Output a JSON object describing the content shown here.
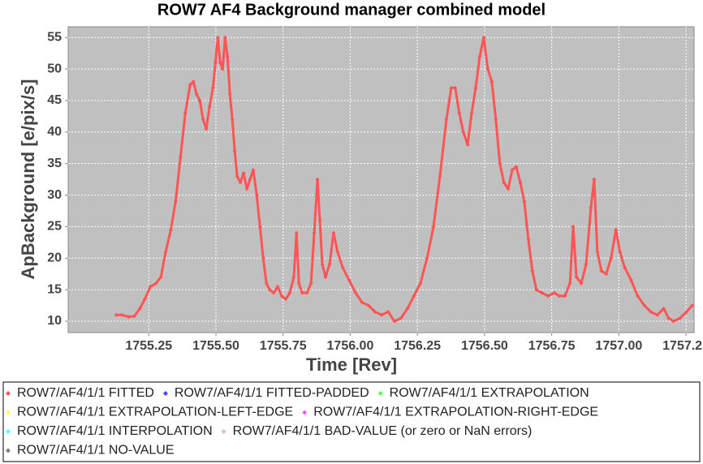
{
  "chart_data": {
    "type": "scatter",
    "title": "ROW7 AF4 Background manager combined model",
    "x_label": "Time [Rev]",
    "y_label": "ApBackground [e/pix/s]",
    "xlim": [
      1754.95,
      1757.28
    ],
    "ylim": [
      8.2,
      56.7
    ],
    "xticks": [
      1755.25,
      {
        "value": 1755.5,
        "label": "1755.50"
      },
      1755.75,
      {
        "value": 1756,
        "label": "1756.00"
      },
      1756.25,
      {
        "value": 1756.5,
        "label": "1756.50"
      },
      1756.75,
      {
        "value": 1757,
        "label": "1757.00"
      },
      1757.25
    ],
    "yticks": [
      10,
      15,
      20,
      25,
      30,
      35,
      40,
      45,
      50,
      55
    ],
    "grid": true,
    "background": "#c0c0c0",
    "series": [
      {
        "name": "ROW7/AF4/1/1 FITTED",
        "color": "#ff5555",
        "x": [
          1755.129,
          1755.15,
          1755.175,
          1755.196,
          1755.217,
          1755.235,
          1755.256,
          1755.277,
          1755.295,
          1755.313,
          1755.332,
          1755.35,
          1755.368,
          1755.386,
          1755.404,
          1755.416,
          1755.428,
          1755.44,
          1755.452,
          1755.464,
          1755.476,
          1755.489,
          1755.498,
          1755.507,
          1755.516,
          1755.525,
          1755.534,
          1755.543,
          1755.552,
          1755.561,
          1755.57,
          1755.579,
          1755.591,
          1755.603,
          1755.615,
          1755.627,
          1755.639,
          1755.652,
          1755.664,
          1755.676,
          1755.688,
          1755.7,
          1755.715,
          1755.73,
          1755.745,
          1755.76,
          1755.775,
          1755.79,
          1755.8,
          1755.809,
          1755.821,
          1755.839,
          1755.854,
          1755.866,
          1755.878,
          1755.887,
          1755.896,
          1755.908,
          1755.923,
          1755.938,
          1755.953,
          1755.972,
          1755.996,
          1756.02,
          1756.044,
          1756.068,
          1756.092,
          1756.117,
          1756.141,
          1756.165,
          1756.189,
          1756.213,
          1756.237,
          1756.261,
          1756.286,
          1756.31,
          1756.334,
          1756.358,
          1756.376,
          1756.391,
          1756.406,
          1756.421,
          1756.437,
          1756.452,
          1756.467,
          1756.482,
          1756.497,
          1756.512,
          1756.527,
          1756.542,
          1756.557,
          1756.572,
          1756.588,
          1756.603,
          1756.618,
          1756.633,
          1756.648,
          1756.663,
          1756.678,
          1756.693,
          1756.714,
          1756.736,
          1756.76,
          1756.778,
          1756.799,
          1756.818,
          1756.83,
          1756.842,
          1756.86,
          1756.878,
          1756.896,
          1756.908,
          1756.92,
          1756.935,
          1756.953,
          1756.971,
          1756.989,
          1757.004,
          1757.022,
          1757.046,
          1757.07,
          1757.095,
          1757.119,
          1757.143,
          1757.167,
          1757.185,
          1757.203,
          1757.228,
          1757.252,
          1757.273
        ],
        "values": [
          11,
          11,
          10.7,
          10.8,
          12,
          13.5,
          15.5,
          16,
          17,
          21,
          24.5,
          29,
          36,
          43,
          47.5,
          48,
          46,
          45,
          42,
          40.5,
          44,
          47,
          51,
          55,
          51,
          50,
          55,
          52,
          46,
          42,
          37,
          33,
          32,
          33.5,
          31,
          32.5,
          34,
          30,
          25,
          20,
          16,
          15,
          14.5,
          15.5,
          14,
          13.5,
          14.5,
          17,
          24,
          16,
          14.5,
          14.5,
          16,
          24,
          32.5,
          26,
          19,
          17,
          19,
          24,
          21,
          18.5,
          16.5,
          14.5,
          13,
          12.5,
          11.5,
          11,
          11.5,
          10,
          10.5,
          12,
          14,
          16,
          20,
          25,
          33,
          42,
          47,
          47,
          43,
          40,
          38,
          43,
          47,
          52,
          55,
          50,
          48,
          42,
          35,
          32,
          31,
          34,
          34.5,
          32,
          29,
          23,
          18,
          15,
          14.5,
          14,
          14.5,
          14,
          14,
          16,
          25,
          17,
          16,
          19,
          28,
          32.5,
          21,
          18,
          17.5,
          20,
          24.5,
          21,
          18.5,
          16.5,
          14,
          12.5,
          11.5,
          11,
          12,
          10.5,
          10,
          10.5,
          11.5,
          12.5
        ]
      },
      {
        "name": "ROW7/AF4/1/1 FITTED-PADDED",
        "color": "#4444ff",
        "x": [],
        "values": []
      },
      {
        "name": "ROW7/AF4/1/1 EXTRAPOLATION",
        "color": "#55ff55",
        "x": [],
        "values": []
      },
      {
        "name": "ROW7/AF4/1/1 EXTRAPOLATION-LEFT-EDGE",
        "color": "#ffff55",
        "x": [],
        "values": []
      },
      {
        "name": "ROW7/AF4/1/1 EXTRAPOLATION-RIGHT-EDGE",
        "color": "#ff55ff",
        "x": [],
        "values": []
      },
      {
        "name": "ROW7/AF4/1/1 INTERPOLATION",
        "color": "#55ffff",
        "x": [],
        "values": []
      },
      {
        "name": "ROW7/AF4/1/1 BAD-VALUE (or zero or NaN errors)",
        "color": "#ffafaf",
        "x": [],
        "values": []
      },
      {
        "name": "ROW7/AF4/1/1 NO-VALUE",
        "color": "#808080",
        "x": [],
        "values": []
      }
    ]
  }
}
